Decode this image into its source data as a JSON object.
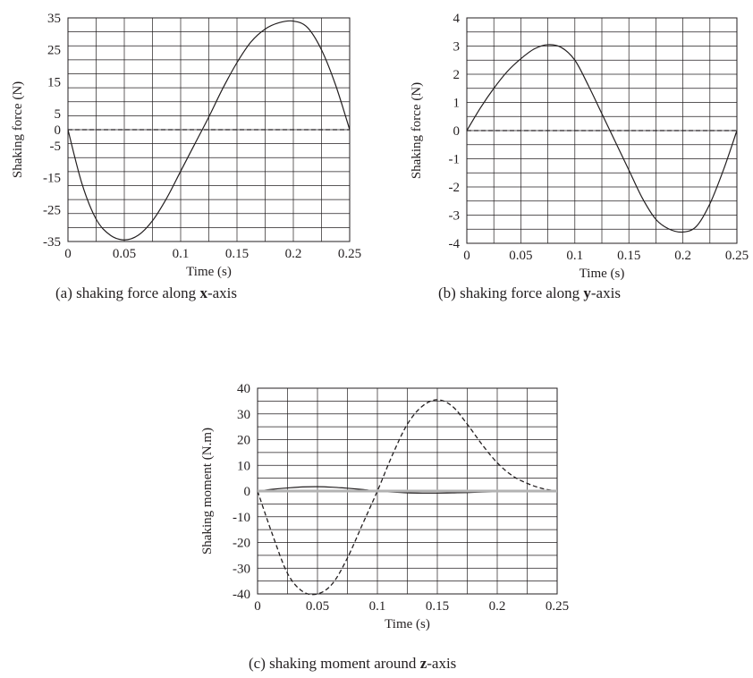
{
  "chart_data": [
    {
      "type": "line",
      "caption": {
        "prefix": "(a)  shaking force along ",
        "axis": "x",
        "suffix": "-axis"
      },
      "xlabel": "Time (s)",
      "ylabel": "Shaking force (N)",
      "xlim": [
        0,
        0.25
      ],
      "ylim": [
        -35,
        35
      ],
      "xticks": [
        "0",
        "0.05",
        "0.1",
        "0.15",
        "0.2",
        "0.25"
      ],
      "yticks": [
        "35",
        "25",
        "15",
        "5",
        "0",
        "-5",
        "-15",
        "-25",
        "-35"
      ],
      "grid": true,
      "series": [
        {
          "style": "solid",
          "color": "#231f20",
          "x": [
            0,
            0.0125,
            0.025,
            0.0375,
            0.05,
            0.0625,
            0.075,
            0.0875,
            0.1,
            0.1125,
            0.125,
            0.1375,
            0.15,
            0.1625,
            0.175,
            0.1875,
            0.2,
            0.2125,
            0.225,
            0.2375,
            0.25
          ],
          "y": [
            0,
            -17,
            -28,
            -33,
            -34.5,
            -33,
            -28.5,
            -21.5,
            -13,
            -4.5,
            4,
            13,
            21,
            27.5,
            31.5,
            33.5,
            34,
            32,
            25,
            14,
            0
          ]
        },
        {
          "style": "dashed",
          "color": "#231f20",
          "x": [
            0,
            0.25
          ],
          "y": [
            0,
            0
          ]
        }
      ]
    },
    {
      "type": "line",
      "caption": {
        "prefix": "(b)  shaking force along ",
        "axis": "y",
        "suffix": "-axis"
      },
      "xlabel": "Time (s)",
      "ylabel": "Shaking force (N)",
      "xlim": [
        0,
        0.25
      ],
      "ylim": [
        -4,
        4
      ],
      "xticks": [
        "0",
        "0.05",
        "0.1",
        "0.15",
        "0.2",
        "0.25"
      ],
      "yticks": [
        "4",
        "3",
        "2",
        "1",
        "0",
        "-1",
        "-2",
        "-3",
        "-4"
      ],
      "grid": true,
      "series": [
        {
          "style": "solid",
          "color": "#231f20",
          "x": [
            0,
            0.0125,
            0.025,
            0.0375,
            0.05,
            0.0625,
            0.075,
            0.0875,
            0.1,
            0.1125,
            0.125,
            0.1375,
            0.15,
            0.1625,
            0.175,
            0.1875,
            0.2,
            0.2125,
            0.225,
            0.2375,
            0.25
          ],
          "y": [
            0,
            0.8,
            1.5,
            2.1,
            2.55,
            2.9,
            3.05,
            2.95,
            2.5,
            1.6,
            0.6,
            -0.4,
            -1.4,
            -2.4,
            -3.15,
            -3.5,
            -3.6,
            -3.4,
            -2.6,
            -1.4,
            0
          ]
        },
        {
          "style": "dashed",
          "color": "#231f20",
          "x": [
            0,
            0.25
          ],
          "y": [
            0,
            0
          ]
        }
      ]
    },
    {
      "type": "line",
      "caption": {
        "prefix": "(c)  shaking moment around ",
        "axis": "z",
        "suffix": "-axis"
      },
      "xlabel": "Time (s)",
      "ylabel": "Shaking moment (N.m)",
      "xlim": [
        0,
        0.25
      ],
      "ylim": [
        -40,
        40
      ],
      "xticks": [
        "0",
        "0.05",
        "0.1",
        "0.15",
        "0.2",
        "0.25"
      ],
      "yticks": [
        "40",
        "30",
        "20",
        "10",
        "0",
        "-10",
        "-20",
        "-30",
        "-40"
      ],
      "grid": true,
      "series": [
        {
          "style": "dashed",
          "color": "#231f20",
          "x": [
            0,
            0.0125,
            0.025,
            0.0375,
            0.05,
            0.0625,
            0.075,
            0.0875,
            0.1,
            0.1125,
            0.125,
            0.1375,
            0.15,
            0.1625,
            0.175,
            0.1875,
            0.2,
            0.2125,
            0.225,
            0.2375,
            0.25
          ],
          "y": [
            0,
            -17,
            -32,
            -39,
            -40,
            -36,
            -26,
            -13,
            0,
            14,
            26,
            33,
            35.5,
            33,
            26,
            18,
            11,
            6,
            3,
            1,
            0
          ]
        },
        {
          "style": "solid",
          "color": "#231f20",
          "x": [
            0,
            0.0125,
            0.025,
            0.0375,
            0.05,
            0.0625,
            0.075,
            0.0875,
            0.1,
            0.1125,
            0.125,
            0.1375,
            0.15,
            0.1625,
            0.175,
            0.1875,
            0.2,
            0.2125,
            0.225,
            0.2375,
            0.25
          ],
          "y": [
            0,
            0.7,
            1.2,
            1.6,
            1.7,
            1.5,
            1.1,
            0.6,
            0,
            -0.4,
            -0.7,
            -0.8,
            -0.8,
            -0.7,
            -0.6,
            -0.4,
            -0.3,
            -0.2,
            -0.1,
            0,
            0
          ]
        },
        {
          "style": "solid-thick",
          "color": "#b2b2b2",
          "x": [
            0,
            0.25
          ],
          "y": [
            0,
            0
          ]
        }
      ]
    }
  ]
}
